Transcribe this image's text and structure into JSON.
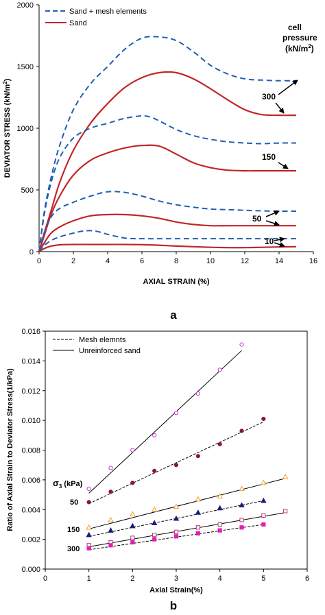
{
  "chart_data": [
    {
      "panel_label": "a",
      "type": "line",
      "xlabel": "AXIAL STRAIN (%)",
      "ylabel": "DEVIATOR STRESS (kN/m2)",
      "ylabel_main": "DEVIATOR STRESS (kN/m",
      "ylabel_sup": "2",
      "ylabel_tail": ")",
      "xlim": [
        0,
        16
      ],
      "ylim": [
        0,
        2000
      ],
      "xticks": [
        0,
        2,
        4,
        6,
        8,
        10,
        12,
        14,
        16
      ],
      "yticks": [
        0,
        500,
        1000,
        1500,
        2000
      ],
      "grid": false,
      "legend_position": "top-left",
      "legend": [
        {
          "label": "Sand + mesh elements",
          "style": "dashed",
          "color": "#1f5fb4"
        },
        {
          "label": "Sand",
          "style": "solid",
          "color": "#c0262a"
        }
      ],
      "annotation_title_1": "cell",
      "annotation_title_2": "pressure",
      "annotation_title_3_main": "(kN/m",
      "annotation_title_3_sup": "2",
      "annotation_title_3_tail": ")",
      "pressure_labels": [
        "300",
        "150",
        "50",
        "10"
      ],
      "series": [
        {
          "group": "300",
          "kind": "mesh",
          "x": [
            0,
            0.3,
            0.7,
            1.2,
            2,
            3,
            4,
            5,
            6,
            7,
            8,
            9,
            10,
            11,
            12,
            13,
            14,
            15
          ],
          "y": [
            0,
            320,
            600,
            860,
            1150,
            1360,
            1500,
            1640,
            1730,
            1740,
            1710,
            1620,
            1510,
            1440,
            1400,
            1390,
            1385,
            1385
          ]
        },
        {
          "group": "300",
          "kind": "sand",
          "x": [
            0,
            0.3,
            0.7,
            1.2,
            2,
            3,
            4,
            5,
            6,
            7,
            8,
            9,
            10,
            11,
            12,
            13,
            14,
            15
          ],
          "y": [
            0,
            150,
            330,
            560,
            820,
            1040,
            1200,
            1330,
            1410,
            1450,
            1450,
            1400,
            1320,
            1230,
            1150,
            1110,
            1105,
            1105
          ]
        },
        {
          "group": "150",
          "kind": "mesh",
          "x": [
            0,
            0.3,
            0.7,
            1.2,
            2,
            3,
            4,
            5,
            6,
            6.5,
            7,
            8,
            9,
            10,
            11,
            12,
            13,
            14,
            15
          ],
          "y": [
            0,
            300,
            560,
            760,
            920,
            1000,
            1040,
            1080,
            1100,
            1090,
            1060,
            990,
            940,
            910,
            890,
            880,
            875,
            880,
            880
          ]
        },
        {
          "group": "150",
          "kind": "sand",
          "x": [
            0,
            0.3,
            0.7,
            1.2,
            2,
            3,
            4,
            5,
            6,
            7,
            8,
            9,
            10,
            11,
            12,
            13,
            14,
            15
          ],
          "y": [
            0,
            130,
            300,
            450,
            620,
            740,
            800,
            840,
            860,
            855,
            790,
            720,
            680,
            660,
            655,
            655,
            655,
            655
          ]
        },
        {
          "group": "50",
          "kind": "mesh",
          "x": [
            0,
            0.3,
            0.7,
            1.2,
            2,
            3,
            4,
            5,
            6,
            7,
            8,
            9,
            10,
            11,
            12,
            13,
            14,
            15
          ],
          "y": [
            0,
            150,
            280,
            350,
            400,
            450,
            485,
            480,
            450,
            410,
            380,
            360,
            345,
            340,
            335,
            330,
            328,
            328
          ]
        },
        {
          "group": "50",
          "kind": "sand",
          "x": [
            0,
            0.3,
            0.7,
            1.2,
            2,
            3,
            4,
            5,
            6,
            7,
            8,
            9,
            10,
            11,
            12,
            13,
            14,
            15
          ],
          "y": [
            0,
            70,
            150,
            200,
            250,
            290,
            300,
            300,
            290,
            270,
            240,
            220,
            210,
            210,
            210,
            210,
            210,
            210
          ]
        },
        {
          "group": "10",
          "kind": "mesh",
          "x": [
            0,
            0.3,
            0.7,
            1.2,
            2,
            2.5,
            3,
            3.5,
            4,
            5,
            6,
            8,
            10,
            12,
            14,
            15
          ],
          "y": [
            0,
            50,
            90,
            120,
            150,
            165,
            170,
            160,
            140,
            110,
            105,
            105,
            105,
            105,
            105,
            105
          ]
        },
        {
          "group": "10",
          "kind": "sand",
          "x": [
            0,
            0.3,
            0.7,
            1.2,
            2,
            3,
            4,
            5,
            6,
            7,
            8,
            10,
            11,
            12,
            13,
            14,
            15
          ],
          "y": [
            0,
            25,
            45,
            55,
            58,
            58,
            58,
            58,
            56,
            52,
            45,
            35,
            32,
            32,
            35,
            38,
            40
          ]
        }
      ]
    },
    {
      "panel_label": "b",
      "type": "scatter",
      "xlabel": "Axial Strain(%)",
      "ylabel": "Ratio of Axial Strain to Deviator Stress(1/kPa)",
      "xlim": [
        0,
        6
      ],
      "ylim": [
        0,
        0.016
      ],
      "xticks": [
        "0",
        "1",
        "2",
        "3",
        "4",
        "5",
        "6"
      ],
      "yticks": [
        "0.000",
        "0.002",
        "0.004",
        "0.006",
        "0.008",
        "0.010",
        "0.012",
        "0.014",
        "0.016"
      ],
      "grid": false,
      "legend_position": "top-left",
      "legend": [
        {
          "label": "Mesh elemnts",
          "style": "dashed"
        },
        {
          "label": "Unreinforced sand",
          "style": "solid"
        }
      ],
      "sigma_label_main": "σ",
      "sigma_label_sub": "3",
      "sigma_label_tail": " (kPa)",
      "pressure_labels": [
        "50",
        "150",
        "300"
      ],
      "series": [
        {
          "group": "10",
          "kind": "sand",
          "marker": "circle-open",
          "color": "#cc33cc",
          "x": [
            1,
            1.5,
            2,
            2.5,
            3,
            3.5,
            4,
            4.5
          ],
          "y": [
            0.0054,
            0.0068,
            0.008,
            0.009,
            0.0105,
            0.0118,
            0.0134,
            0.0151
          ],
          "fit": [
            [
              1,
              0.0051
            ],
            [
              4.5,
              0.0147
            ]
          ]
        },
        {
          "group": "10",
          "kind": "mesh",
          "marker": "circle-filled",
          "color": "#8b1a2e",
          "x": [
            1,
            1.5,
            2,
            2.5,
            3,
            3.5,
            4,
            4.5,
            5
          ],
          "y": [
            0.0045,
            0.0052,
            0.0058,
            0.0066,
            0.007,
            0.0076,
            0.0084,
            0.0093,
            0.0101
          ],
          "fit": [
            [
              1,
              0.0044
            ],
            [
              5,
              0.0099
            ]
          ]
        },
        {
          "group": "50",
          "kind": "sand",
          "marker": "triangle-open",
          "color": "#f39c2a",
          "x": [
            1,
            1.5,
            2,
            2.5,
            3,
            3.5,
            4,
            4.5,
            5,
            5.5
          ],
          "y": [
            0.0028,
            0.0033,
            0.0037,
            0.004,
            0.0042,
            0.0047,
            0.0049,
            0.0054,
            0.0058,
            0.0062
          ],
          "fit": [
            [
              1,
              0.0027
            ],
            [
              5.5,
              0.0061
            ]
          ]
        },
        {
          "group": "150",
          "kind": "mesh",
          "marker": "triangle-filled",
          "color": "#1c1c7c",
          "x": [
            1,
            1.5,
            2,
            2.5,
            3,
            3.5,
            4,
            4.5,
            5
          ],
          "y": [
            0.0023,
            0.0026,
            0.0029,
            0.0031,
            0.0034,
            0.0038,
            0.0041,
            0.0043,
            0.0046
          ],
          "fit": [
            [
              1,
              0.0022
            ],
            [
              5,
              0.0046
            ]
          ]
        },
        {
          "group": "150",
          "kind": "sand",
          "marker": "square-open",
          "color": "#b0357a",
          "x": [
            1,
            1.5,
            2,
            2.5,
            3,
            3.5,
            4,
            4.5,
            5,
            5.5
          ],
          "y": [
            0.0016,
            0.0018,
            0.0021,
            0.0023,
            0.0025,
            0.0028,
            0.003,
            0.0033,
            0.0036,
            0.0039
          ],
          "fit": [
            [
              1,
              0.0015
            ],
            [
              5.5,
              0.0038
            ]
          ]
        },
        {
          "group": "300",
          "kind": "mesh",
          "marker": "square-filled",
          "color": "#e21fb5",
          "x": [
            1,
            1.5,
            2,
            2.5,
            3,
            3.5,
            4,
            4.5,
            5
          ],
          "y": [
            0.0014,
            0.0016,
            0.0018,
            0.002,
            0.0022,
            0.0024,
            0.0026,
            0.0028,
            0.003
          ],
          "fit": [
            [
              1,
              0.0013
            ],
            [
              5,
              0.003
            ]
          ]
        }
      ]
    }
  ]
}
